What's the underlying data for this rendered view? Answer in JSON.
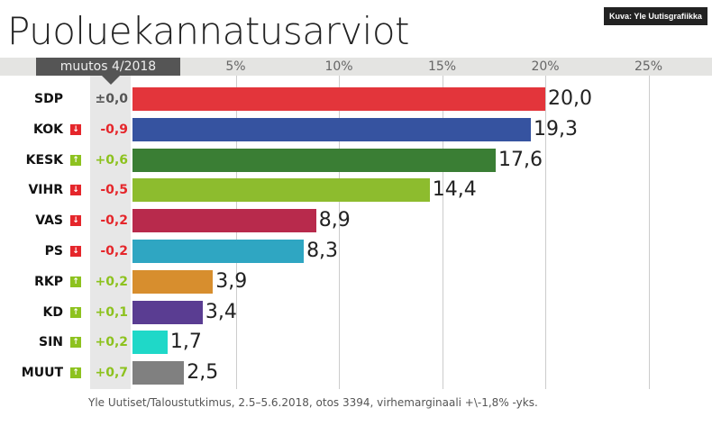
{
  "title": "Puoluekannatusarviot",
  "credit": "Kuva: Yle Uutisgrafiikka",
  "change_header": "muutos 4/2018",
  "source": "Yle Uutiset/Taloustutkimus, 2.5–5.6.2018, otos 3394, virhemarginaali +\\-1,8% -yks.",
  "colors": {
    "up": "#8dc21f",
    "down": "#e5262b",
    "neutral": "#555555"
  },
  "chart_data": {
    "type": "bar",
    "orientation": "horizontal",
    "title": "Puoluekannatusarviot",
    "xlim": [
      0,
      27
    ],
    "ticks": [
      {
        "v": 5,
        "label": "5%"
      },
      {
        "v": 10,
        "label": "10%"
      },
      {
        "v": 15,
        "label": "15%"
      },
      {
        "v": 20,
        "label": "20%"
      },
      {
        "v": 25,
        "label": "25%"
      }
    ],
    "rows": [
      {
        "party": "SDP",
        "value": 20.0,
        "label": "20,0",
        "change": "±0,0",
        "dir": "none",
        "color": "#e3353b"
      },
      {
        "party": "KOK",
        "value": 19.3,
        "label": "19,3",
        "change": "-0,9",
        "dir": "down",
        "color": "#3653a0"
      },
      {
        "party": "KESK",
        "value": 17.6,
        "label": "17,6",
        "change": "+0,6",
        "dir": "up",
        "color": "#3a7e34"
      },
      {
        "party": "VIHR",
        "value": 14.4,
        "label": "14,4",
        "change": "-0,5",
        "dir": "down",
        "color": "#8dbc2e"
      },
      {
        "party": "VAS",
        "value": 8.9,
        "label": "8,9",
        "change": "-0,2",
        "dir": "down",
        "color": "#b82a4c"
      },
      {
        "party": "PS",
        "value": 8.3,
        "label": "8,3",
        "change": "-0,2",
        "dir": "down",
        "color": "#2fa6c2"
      },
      {
        "party": "RKP",
        "value": 3.9,
        "label": "3,9",
        "change": "+0,2",
        "dir": "up",
        "color": "#d78e2e"
      },
      {
        "party": "KD",
        "value": 3.4,
        "label": "3,4",
        "change": "+0,1",
        "dir": "up",
        "color": "#5a3d92"
      },
      {
        "party": "SIN",
        "value": 1.7,
        "label": "1,7",
        "change": "+0,2",
        "dir": "up",
        "color": "#1fd8c8"
      },
      {
        "party": "MUUT",
        "value": 2.5,
        "label": "2,5",
        "change": "+0,7",
        "dir": "up",
        "color": "#808080"
      }
    ]
  }
}
